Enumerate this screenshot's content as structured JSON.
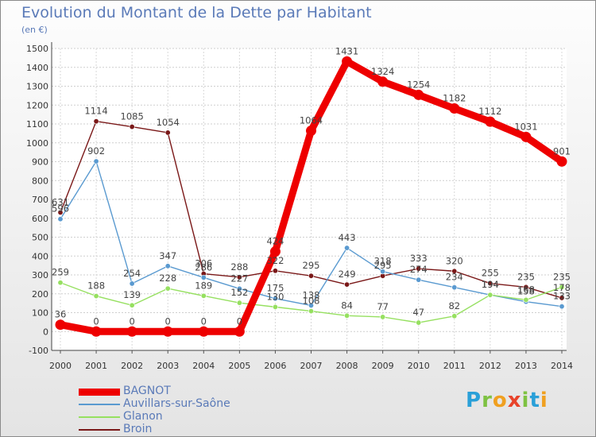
{
  "title": "Evolution du Montant de la Dette par Habitant",
  "unit": "(en €)",
  "logo": {
    "letters": [
      "P",
      "r",
      "o",
      "x",
      "i",
      "t",
      "i"
    ],
    "colors": [
      "#2aa0d8",
      "#7ec242",
      "#f0a020",
      "#e8432a",
      "#7ec242",
      "#2aa0d8",
      "#f0a020"
    ]
  },
  "chart_data": {
    "type": "line",
    "x": [
      "2000",
      "2001",
      "2002",
      "2003",
      "2004",
      "2005",
      "2006",
      "2007",
      "2008",
      "2009",
      "2010",
      "2011",
      "2012",
      "2013",
      "2014"
    ],
    "ylim": [
      -100,
      1500
    ],
    "yticks": [
      "-100",
      "0",
      "100",
      "200",
      "300",
      "400",
      "500",
      "600",
      "700",
      "800",
      "900",
      "1000",
      "1100",
      "1200",
      "1300",
      "1400",
      "1500"
    ],
    "grid": true,
    "legend_position": "bottom-left",
    "series": [
      {
        "name": "BAGNOT",
        "color": "#ee0000",
        "values": [
          36,
          0,
          0,
          0,
          0,
          0,
          424,
          1064,
          1431,
          1324,
          1254,
          1182,
          1112,
          1031,
          901
        ],
        "labels": [
          "36",
          "0",
          "0",
          "0",
          "0",
          "0",
          "424",
          "1064",
          "1431",
          "1324",
          "1254",
          "1182",
          "1112",
          "1031",
          "901"
        ]
      },
      {
        "name": "Auvillars-sur-Saône",
        "color": "#5a9ad0",
        "values": [
          596,
          902,
          254,
          347,
          286,
          227,
          175,
          138,
          443,
          318,
          274,
          234,
          194,
          158,
          133
        ],
        "labels": [
          "596",
          "902",
          "254",
          "347",
          "286",
          "227",
          "175",
          "138",
          "443",
          "318",
          "274",
          "234",
          "194",
          "158",
          "133"
        ]
      },
      {
        "name": "Glanon",
        "color": "#96e060",
        "values": [
          259,
          188,
          139,
          228,
          189,
          152,
          130,
          108,
          84,
          77,
          47,
          82,
          194,
          168,
          235
        ],
        "labels": [
          "259",
          "188",
          "139",
          "228",
          "189",
          "152",
          "130",
          "108",
          "84",
          "77",
          "47",
          "82",
          "194",
          "168",
          "235"
        ]
      },
      {
        "name": "Broin",
        "color": "#7a1818",
        "values": [
          631,
          1114,
          1085,
          1054,
          306,
          288,
          322,
          295,
          249,
          295,
          333,
          320,
          255,
          235,
          178
        ],
        "labels": [
          "631",
          "1114",
          "1085",
          "1054",
          "306",
          "288",
          "322",
          "295",
          "249",
          "295",
          "333",
          "320",
          "255",
          "235",
          "178"
        ]
      }
    ]
  }
}
